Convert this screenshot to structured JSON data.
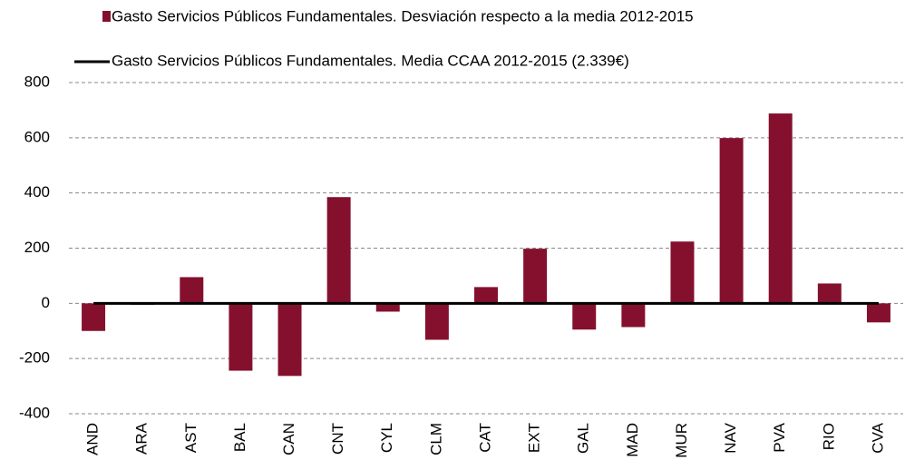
{
  "chart_data": {
    "type": "bar",
    "categories": [
      "AND",
      "ARA",
      "AST",
      "BAL",
      "CAN",
      "CNT",
      "CYL",
      "CLM",
      "CAT",
      "EXT",
      "GAL",
      "MAD",
      "MUR",
      "NAV",
      "PVA",
      "RIO",
      "CVA"
    ],
    "series": [
      {
        "name": "Gasto Servicios Públicos Fundamentales. Desviación respecto a la media 2012-2015",
        "color": "#85102e",
        "type": "bar",
        "values": [
          -100,
          -5,
          95,
          -244,
          -263,
          385,
          -30,
          -132,
          59,
          198,
          -95,
          -86,
          224,
          599,
          688,
          72,
          -69
        ]
      },
      {
        "name": "Gasto Servicios Públicos Fundamentales.  Media CCAA 2012-2015 (2.339€)",
        "color": "#000000",
        "type": "line",
        "values": [
          0,
          0,
          0,
          0,
          0,
          0,
          0,
          0,
          0,
          0,
          0,
          0,
          0,
          0,
          0,
          0,
          0
        ]
      }
    ],
    "ylim": [
      -400,
      800
    ],
    "yticks": [
      -400,
      -200,
      0,
      200,
      400,
      600,
      800
    ],
    "grid": true
  }
}
